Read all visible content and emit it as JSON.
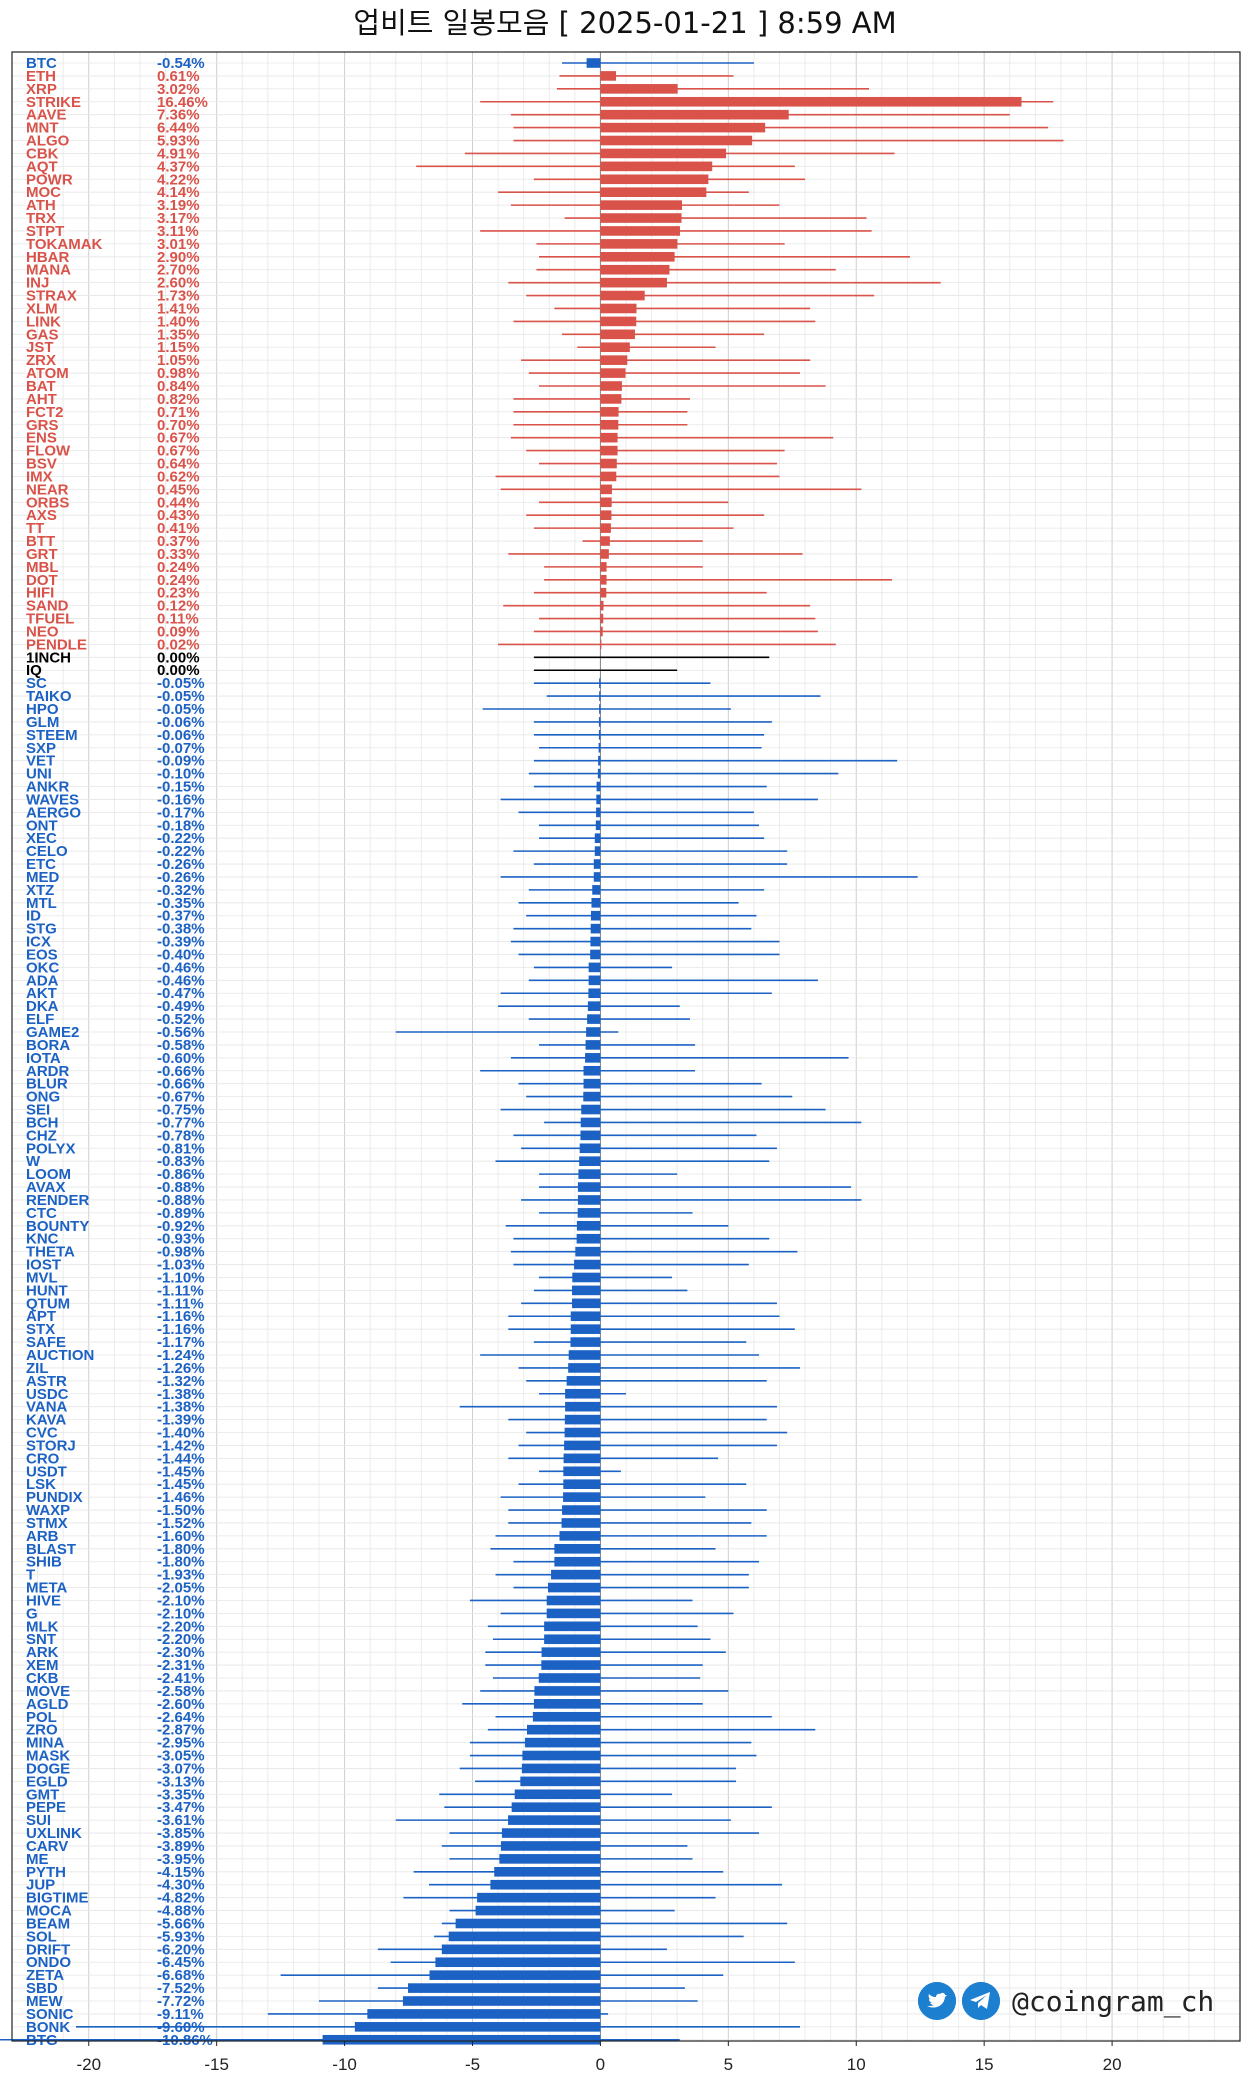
{
  "title": "업비트 일봉모음 [ 2025-01-21 ]  8:59 AM",
  "brand": {
    "handle": "@coingram_ch",
    "icons": [
      "twitter-icon",
      "telegram-icon"
    ]
  },
  "colors": {
    "up": "#d9534a",
    "down": "#1c62c4",
    "flat": "#000000"
  },
  "chart_data": {
    "type": "bar",
    "orientation": "horizontal",
    "xlim": [
      -23,
      25
    ],
    "xticks": [
      -20,
      -15,
      -10,
      -5,
      0,
      5,
      10,
      15,
      20
    ],
    "grid": true,
    "categories": [
      "BTC",
      "ETH",
      "XRP",
      "STRIKE",
      "AAVE",
      "MNT",
      "ALGO",
      "CBK",
      "AQT",
      "POWR",
      "MOC",
      "ATH",
      "TRX",
      "STPT",
      "TOKAMAK",
      "HBAR",
      "MANA",
      "INJ",
      "STRAX",
      "XLM",
      "LINK",
      "GAS",
      "JST",
      "ZRX",
      "ATOM",
      "BAT",
      "AHT",
      "FCT2",
      "GRS",
      "ENS",
      "FLOW",
      "BSV",
      "IMX",
      "NEAR",
      "ORBS",
      "AXS",
      "TT",
      "BTT",
      "GRT",
      "MBL",
      "DOT",
      "HIFI",
      "SAND",
      "TFUEL",
      "NEO",
      "PENDLE",
      "1INCH",
      "IQ",
      "SC",
      "TAIKO",
      "HPO",
      "GLM",
      "STEEM",
      "SXP",
      "VET",
      "UNI",
      "ANKR",
      "WAVES",
      "AERGO",
      "ONT",
      "XEC",
      "CELO",
      "ETC",
      "MED",
      "XTZ",
      "MTL",
      "ID",
      "STG",
      "ICX",
      "EOS",
      "OKC",
      "ADA",
      "AKT",
      "DKA",
      "ELF",
      "GAME2",
      "BORA",
      "IOTA",
      "ARDR",
      "BLUR",
      "ONG",
      "SEI",
      "BCH",
      "CHZ",
      "POLYX",
      "W",
      "LOOM",
      "AVAX",
      "RENDER",
      "CTC",
      "BOUNTY",
      "KNC",
      "THETA",
      "IOST",
      "MVL",
      "HUNT",
      "QTUM",
      "APT",
      "STX",
      "SAFE",
      "AUCTION",
      "ZIL",
      "ASTR",
      "USDC",
      "VANA",
      "KAVA",
      "CVC",
      "STORJ",
      "CRO",
      "USDT",
      "LSK",
      "PUNDIX",
      "WAXP",
      "STMX",
      "ARB",
      "BLAST",
      "SHIB",
      "T",
      "META",
      "HIVE",
      "G",
      "MLK",
      "SNT",
      "ARK",
      "XEM",
      "CKB",
      "MOVE",
      "AGLD",
      "POL",
      "ZRO",
      "MINA",
      "MASK",
      "DOGE",
      "EGLD",
      "GMT",
      "PEPE",
      "SUI",
      "UXLINK",
      "CARV",
      "ME",
      "PYTH",
      "JUP",
      "BIGTIME",
      "MOCA",
      "BEAM",
      "SOL",
      "DRIFT",
      "ONDO",
      "ZETA",
      "SBD",
      "MEW",
      "SONIC",
      "BONK",
      "BTG"
    ],
    "values": [
      -0.54,
      0.61,
      3.02,
      16.46,
      7.36,
      6.44,
      5.93,
      4.91,
      4.37,
      4.22,
      4.14,
      3.19,
      3.17,
      3.11,
      3.01,
      2.9,
      2.7,
      2.6,
      1.73,
      1.41,
      1.4,
      1.35,
      1.15,
      1.05,
      0.98,
      0.84,
      0.82,
      0.71,
      0.7,
      0.67,
      0.67,
      0.64,
      0.62,
      0.45,
      0.44,
      0.43,
      0.41,
      0.37,
      0.33,
      0.24,
      0.24,
      0.23,
      0.12,
      0.11,
      0.09,
      0.02,
      0.0,
      0.0,
      -0.05,
      -0.05,
      -0.05,
      -0.06,
      -0.06,
      -0.07,
      -0.09,
      -0.1,
      -0.15,
      -0.16,
      -0.17,
      -0.18,
      -0.22,
      -0.22,
      -0.26,
      -0.26,
      -0.32,
      -0.35,
      -0.37,
      -0.38,
      -0.39,
      -0.4,
      -0.46,
      -0.46,
      -0.47,
      -0.49,
      -0.52,
      -0.56,
      -0.58,
      -0.6,
      -0.66,
      -0.66,
      -0.67,
      -0.75,
      -0.77,
      -0.78,
      -0.81,
      -0.83,
      -0.86,
      -0.88,
      -0.88,
      -0.89,
      -0.92,
      -0.93,
      -0.98,
      -1.03,
      -1.1,
      -1.11,
      -1.11,
      -1.16,
      -1.16,
      -1.17,
      -1.24,
      -1.26,
      -1.32,
      -1.38,
      -1.38,
      -1.39,
      -1.4,
      -1.42,
      -1.44,
      -1.45,
      -1.45,
      -1.46,
      -1.5,
      -1.52,
      -1.6,
      -1.8,
      -1.8,
      -1.93,
      -2.05,
      -2.1,
      -2.1,
      -2.2,
      -2.2,
      -2.3,
      -2.31,
      -2.41,
      -2.58,
      -2.6,
      -2.64,
      -2.87,
      -2.95,
      -3.05,
      -3.07,
      -3.13,
      -3.35,
      -3.47,
      -3.61,
      -3.85,
      -3.89,
      -3.95,
      -4.15,
      -4.3,
      -4.82,
      -4.88,
      -5.66,
      -5.93,
      -6.2,
      -6.45,
      -6.68,
      -7.52,
      -7.72,
      -9.11,
      -9.6,
      -10.86
    ],
    "labels": [
      "-0.54%",
      "0.61%",
      "3.02%",
      "16.46%",
      "7.36%",
      "6.44%",
      "5.93%",
      "4.91%",
      "4.37%",
      "4.22%",
      "4.14%",
      "3.19%",
      "3.17%",
      "3.11%",
      "3.01%",
      "2.90%",
      "2.70%",
      "2.60%",
      "1.73%",
      "1.41%",
      "1.40%",
      "1.35%",
      "1.15%",
      "1.05%",
      "0.98%",
      "0.84%",
      "0.82%",
      "0.71%",
      "0.70%",
      "0.67%",
      "0.67%",
      "0.64%",
      "0.62%",
      "0.45%",
      "0.44%",
      "0.43%",
      "0.41%",
      "0.37%",
      "0.33%",
      "0.24%",
      "0.24%",
      "0.23%",
      "0.12%",
      "0.11%",
      "0.09%",
      "0.02%",
      "0.00%",
      "0.00%",
      "-0.05%",
      "-0.05%",
      "-0.05%",
      "-0.06%",
      "-0.06%",
      "-0.07%",
      "-0.09%",
      "-0.10%",
      "-0.15%",
      "-0.16%",
      "-0.17%",
      "-0.18%",
      "-0.22%",
      "-0.22%",
      "-0.26%",
      "-0.26%",
      "-0.32%",
      "-0.35%",
      "-0.37%",
      "-0.38%",
      "-0.39%",
      "-0.40%",
      "-0.46%",
      "-0.46%",
      "-0.47%",
      "-0.49%",
      "-0.52%",
      "-0.56%",
      "-0.58%",
      "-0.60%",
      "-0.66%",
      "-0.66%",
      "-0.67%",
      "-0.75%",
      "-0.77%",
      "-0.78%",
      "-0.81%",
      "-0.83%",
      "-0.86%",
      "-0.88%",
      "-0.88%",
      "-0.89%",
      "-0.92%",
      "-0.93%",
      "-0.98%",
      "-1.03%",
      "-1.10%",
      "-1.11%",
      "-1.11%",
      "-1.16%",
      "-1.16%",
      "-1.17%",
      "-1.24%",
      "-1.26%",
      "-1.32%",
      "-1.38%",
      "-1.38%",
      "-1.39%",
      "-1.40%",
      "-1.42%",
      "-1.44%",
      "-1.45%",
      "-1.45%",
      "-1.46%",
      "-1.50%",
      "-1.52%",
      "-1.60%",
      "-1.80%",
      "-1.80%",
      "-1.93%",
      "-2.05%",
      "-2.10%",
      "-2.10%",
      "-2.20%",
      "-2.20%",
      "-2.30%",
      "-2.31%",
      "-2.41%",
      "-2.58%",
      "-2.60%",
      "-2.64%",
      "-2.87%",
      "-2.95%",
      "-3.05%",
      "-3.07%",
      "-3.13%",
      "-3.35%",
      "-3.47%",
      "-3.61%",
      "-3.85%",
      "-3.89%",
      "-3.95%",
      "-4.15%",
      "-4.30%",
      "-4.82%",
      "-4.88%",
      "-5.66%",
      "-5.93%",
      "-6.20%",
      "-6.45%",
      "-6.68%",
      "-7.52%",
      "-7.72%",
      "-9.11%",
      "-9.60%",
      "-10.86%"
    ],
    "range_low": [
      -1.5,
      -1.6,
      -1.7,
      -4.7,
      -3.5,
      -3.4,
      -3.4,
      -5.3,
      -7.2,
      -2.6,
      -4.0,
      -3.5,
      -1.4,
      -4.7,
      -2.5,
      -2.4,
      -2.5,
      -3.6,
      -2.9,
      -1.8,
      -3.4,
      -1.5,
      -0.9,
      -3.1,
      -2.8,
      -2.4,
      -3.4,
      -3.4,
      -3.4,
      -3.5,
      -2.9,
      -2.4,
      -4.1,
      -3.9,
      -2.4,
      -2.9,
      -2.6,
      -0.7,
      -3.6,
      -2.2,
      -2.2,
      -2.6,
      -3.8,
      -2.4,
      -2.6,
      -4.0,
      -2.6,
      -2.6,
      -2.6,
      -2.1,
      -4.6,
      -2.6,
      -2.6,
      -2.4,
      -2.6,
      -2.8,
      -2.6,
      -3.9,
      -3.2,
      -2.4,
      -2.4,
      -3.4,
      -2.6,
      -3.9,
      -2.8,
      -3.2,
      -2.9,
      -3.4,
      -3.5,
      -3.2,
      -2.6,
      -2.8,
      -3.9,
      -4.0,
      -2.8,
      -8.0,
      -2.4,
      -3.5,
      -4.7,
      -3.2,
      -2.9,
      -3.9,
      -2.2,
      -3.4,
      -3.1,
      -4.1,
      -2.4,
      -2.4,
      -3.1,
      -2.4,
      -3.7,
      -3.4,
      -3.5,
      -3.4,
      -2.4,
      -2.6,
      -3.1,
      -3.6,
      -3.6,
      -2.6,
      -4.7,
      -3.2,
      -2.9,
      -2.4,
      -5.5,
      -3.6,
      -2.9,
      -3.2,
      -3.6,
      -2.4,
      -3.2,
      -3.9,
      -3.6,
      -3.6,
      -4.1,
      -4.3,
      -3.4,
      -4.1,
      -3.4,
      -5.1,
      -3.9,
      -4.4,
      -4.2,
      -4.5,
      -4.5,
      -4.2,
      -4.7,
      -5.4,
      -4.1,
      -4.4,
      -5.1,
      -5.1,
      -5.5,
      -4.9,
      -6.3,
      -6.1,
      -8.0,
      -5.9,
      -6.2,
      -5.9,
      -7.3,
      -6.7,
      -7.7,
      -5.9,
      -6.2,
      -6.5,
      -8.7,
      -8.2,
      -12.5,
      -8.7,
      -11.0,
      -13.0,
      -20.5
    ],
    "range_high": [
      6.0,
      5.2,
      10.5,
      17.7,
      16.0,
      17.5,
      18.1,
      11.5,
      7.6,
      8.0,
      5.8,
      7.0,
      10.4,
      10.6,
      7.2,
      12.1,
      9.2,
      13.3,
      10.7,
      8.2,
      8.4,
      6.4,
      4.5,
      8.2,
      7.8,
      8.8,
      3.5,
      3.4,
      3.4,
      9.1,
      7.2,
      6.9,
      7.0,
      10.2,
      5.0,
      6.4,
      5.2,
      4.0,
      7.9,
      4.0,
      11.4,
      6.5,
      8.2,
      8.4,
      8.5,
      9.2,
      6.6,
      3.0,
      4.3,
      8.6,
      5.1,
      6.7,
      6.4,
      6.3,
      11.6,
      9.3,
      6.5,
      8.5,
      6.0,
      6.2,
      6.4,
      7.3,
      7.3,
      12.4,
      6.4,
      5.4,
      6.1,
      5.9,
      7.0,
      7.0,
      2.8,
      8.5,
      6.7,
      3.1,
      3.5,
      0.7,
      3.7,
      9.7,
      3.7,
      6.3,
      7.5,
      8.8,
      10.2,
      6.1,
      6.9,
      6.6,
      3.0,
      9.8,
      10.2,
      3.6,
      5.0,
      6.6,
      7.7,
      5.8,
      2.8,
      3.4,
      6.9,
      7.0,
      7.6,
      5.7,
      6.2,
      7.8,
      6.5,
      1.0,
      6.9,
      6.5,
      7.3,
      6.9,
      4.6,
      0.8,
      5.7,
      4.1,
      6.5,
      5.9,
      6.5,
      4.5,
      6.2,
      5.8,
      5.8,
      3.6,
      5.2,
      3.8,
      4.3,
      4.9,
      4.0,
      3.9,
      5.0,
      4.0,
      6.7,
      8.4,
      5.9,
      6.1,
      5.3,
      5.3,
      2.8,
      6.7,
      5.1,
      6.2,
      3.4,
      3.6,
      4.8,
      7.1,
      4.5,
      2.9,
      7.3,
      5.6,
      2.6,
      7.6,
      4.8,
      3.3,
      3.8,
      0.3,
      7.8,
      3.1
    ]
  }
}
